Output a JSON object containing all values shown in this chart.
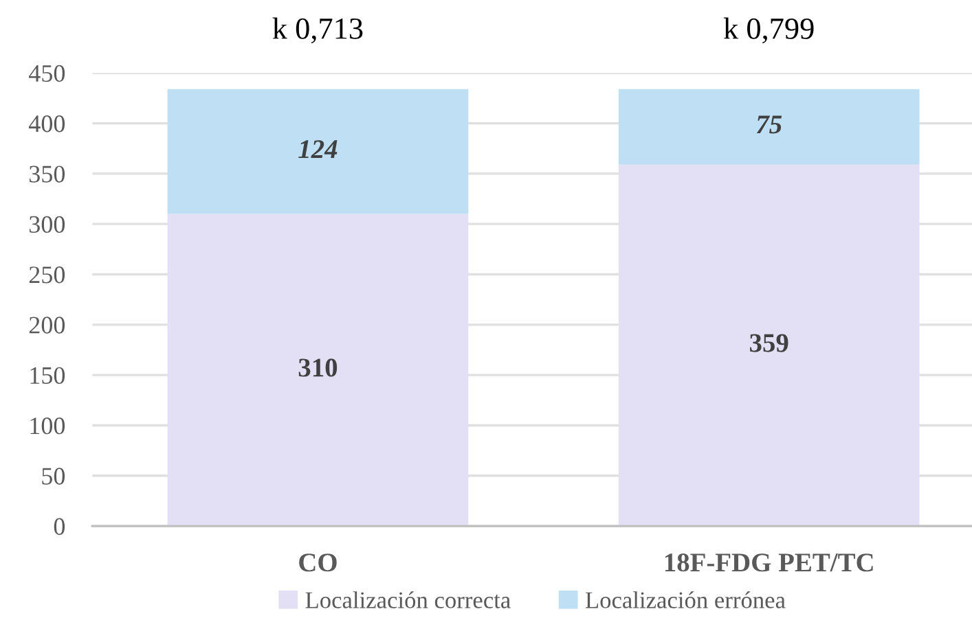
{
  "chart_data": {
    "type": "bar",
    "stacked": true,
    "categories": [
      "CO",
      "18F-FDG PET/TC"
    ],
    "series": [
      {
        "name": "Localización correcta",
        "color": "#e3dff4",
        "values": [
          310,
          359
        ]
      },
      {
        "name": "Localización errónea",
        "color": "#bedff4",
        "values": [
          124,
          75
        ]
      }
    ],
    "ylim": [
      0,
      450
    ],
    "yticks": [
      0,
      50,
      100,
      150,
      200,
      250,
      300,
      350,
      400,
      450
    ],
    "grid": "y",
    "legend": "bottom",
    "data_labels": true,
    "annotations": [
      "k 0,713",
      "k 0,799"
    ]
  }
}
